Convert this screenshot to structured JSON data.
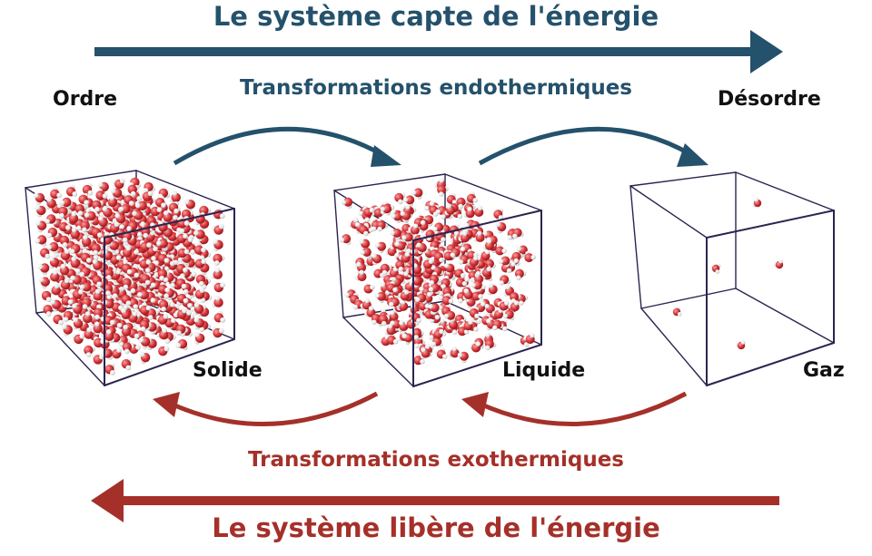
{
  "top_banner": "Le système capte de l'énergie",
  "endothermic_label": "Transformations endothermiques",
  "exothermic_label": "Transformations exothermiques",
  "bottom_banner": "Le système libère de l'énergie",
  "order_label": "Ordre",
  "disorder_label": "Désordre",
  "states": {
    "solid": "Solide",
    "liquid": "Liquide",
    "gas": "Gaz"
  },
  "colors": {
    "absorb": "#24516b",
    "release": "#a5302a",
    "box_edge": "#2b2450",
    "oxygen": "#d8363b",
    "hydrogen": "#ececec"
  }
}
